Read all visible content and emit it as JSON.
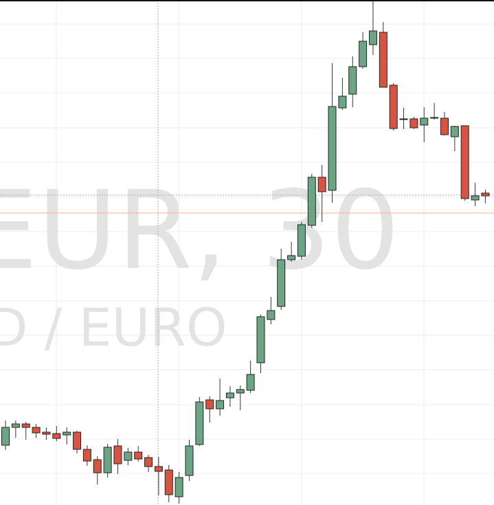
{
  "chart_data": {
    "type": "candlestick",
    "watermark": "EUR, 30",
    "watermark_subtitle": "D / EURO",
    "ylim": [
      0,
      735
    ],
    "up_color": "#6ba583",
    "down_color": "#d75442",
    "open": [
      87,
      113,
      118,
      113,
      106,
      104,
      102,
      106,
      81,
      66,
      47,
      86,
      65,
      77,
      69,
      56,
      51,
      12,
      43,
      88,
      153,
      140,
      156,
      163,
      167,
      207,
      270,
      289,
      357,
      362,
      407,
      477,
      458,
      578,
      598,
      638,
      670,
      688,
      611,
      562,
      562,
      553,
      563,
      563,
      536,
      552,
      444,
      454
    ],
    "high": [
      123,
      123,
      121,
      118,
      113,
      115,
      113,
      108,
      87,
      71,
      89,
      96,
      83,
      86,
      73,
      70,
      58,
      48,
      95,
      157,
      158,
      184,
      173,
      174,
      210,
      277,
      303,
      373,
      383,
      412,
      482,
      495,
      643,
      622,
      653,
      688,
      735,
      703,
      614,
      578,
      565,
      579,
      585,
      572,
      552,
      552,
      469,
      459
    ],
    "low": [
      80,
      98,
      95,
      98,
      95,
      93,
      88,
      75,
      57,
      30,
      40,
      45,
      58,
      63,
      48,
      14,
      4,
      2,
      35,
      86,
      120,
      130,
      143,
      138,
      163,
      192,
      263,
      284,
      354,
      357,
      403,
      412,
      440,
      575,
      579,
      635,
      655,
      608,
      545,
      547,
      547,
      528,
      561,
      538,
      515,
      443,
      435,
      439
    ],
    "close": [
      113,
      118,
      113,
      105,
      103,
      97,
      106,
      81,
      64,
      47,
      84,
      60,
      77,
      67,
      56,
      49,
      15,
      40,
      86,
      150,
      140,
      152,
      163,
      168,
      190,
      274,
      283,
      357,
      363,
      408,
      477,
      456,
      580,
      595,
      638,
      675,
      690,
      608,
      548,
      561,
      549,
      563,
      564,
      539,
      551,
      446,
      450,
      450
    ]
  }
}
